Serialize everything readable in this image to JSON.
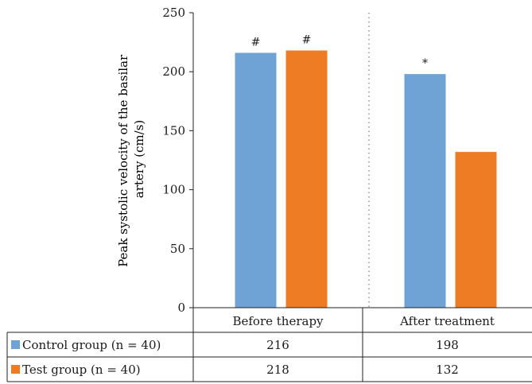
{
  "chart_data": {
    "type": "bar",
    "categories": [
      "Before therapy",
      "After treatment"
    ],
    "series": [
      {
        "name": "Control group (n = 40)",
        "values": [
          216,
          198
        ],
        "color": "#6fa3d6"
      },
      {
        "name": "Test group (n = 40)",
        "values": [
          218,
          132
        ],
        "color": "#ee7c25"
      }
    ],
    "annotations": [
      {
        "category": "Before therapy",
        "series": "Control group (n = 40)",
        "text": "#"
      },
      {
        "category": "Before therapy",
        "series": "Test group (n = 40)",
        "text": "#"
      },
      {
        "category": "After treatment",
        "series": "Control group (n = 40)",
        "text": "*"
      }
    ],
    "ylabel": "Peak systolic velocity of the basilar artery (cm/s)",
    "ylabel_lines": [
      "Peak systolic velocity of the basilar",
      "artery (cm/s)"
    ],
    "yticks": [
      0,
      50,
      100,
      150,
      200,
      250
    ],
    "ylim": [
      0,
      250
    ],
    "grid": false,
    "category_separator": "dotted",
    "data_table": true
  }
}
